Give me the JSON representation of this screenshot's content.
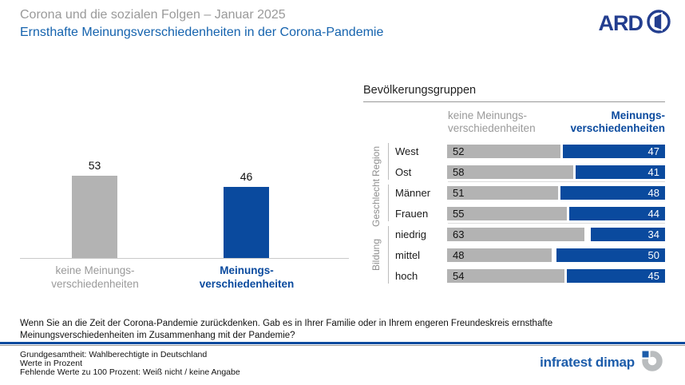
{
  "header": {
    "pretitle": "Corona und die sozialen Folgen – Januar 2025",
    "title": "Ernsthafte Meinungsverschiedenheiten in der Corona-Pandemie",
    "ard_logo_text": "ARD"
  },
  "colors": {
    "accent_blue": "#0a4a9e",
    "bar_gray": "#b3b3b3",
    "title_blue": "#1563ae",
    "text_gray": "#9a9a9a",
    "ard_navy": "#233e8f",
    "infratest_blue": "#1c5caa",
    "infratest_gray": "#b9bcbe",
    "separator_gray": "#999999",
    "baseline_gray": "#c9c9c9"
  },
  "chart_data": [
    {
      "type": "bar",
      "title": "",
      "categories": [
        "keine Meinungs-\nverschiedenheiten",
        "Meinungs-\nverschiedenheiten"
      ],
      "values": [
        53,
        46
      ],
      "bar_colors": [
        "#b3b3b3",
        "#0a4a9e"
      ],
      "ylim": [
        0,
        74
      ],
      "grid": false,
      "value_labels_shown": true
    },
    {
      "type": "bar",
      "orientation": "horizontal",
      "title": "Bevölkerungsgruppen",
      "xlim": [
        0,
        100
      ],
      "series": [
        {
          "name": "keine Meinungs-\nverschiedenheiten",
          "color": "#b3b3b3"
        },
        {
          "name": "Meinungs-\nverschiedenheiten",
          "color": "#0a4a9e"
        }
      ],
      "groups": [
        {
          "label": "Region",
          "rows": [
            {
              "label": "West",
              "keine": 52,
              "meinungs": 47
            },
            {
              "label": "Ost",
              "keine": 58,
              "meinungs": 41
            }
          ]
        },
        {
          "label": "Geschlecht",
          "rows": [
            {
              "label": "Männer",
              "keine": 51,
              "meinungs": 48
            },
            {
              "label": "Frauen",
              "keine": 55,
              "meinungs": 44
            }
          ]
        },
        {
          "label": "Bildung",
          "rows": [
            {
              "label": "niedrig",
              "keine": 63,
              "meinungs": 34
            },
            {
              "label": "mittel",
              "keine": 48,
              "meinungs": 50
            },
            {
              "label": "hoch",
              "keine": 54,
              "meinungs": 45
            }
          ]
        }
      ]
    }
  ],
  "question": "Wenn Sie an die Zeit der Corona-Pandemie zurückdenken. Gab es in Ihrer Familie oder in Ihrem engeren Freundeskreis ernsthafte Meinungsverschiedenheiten im Zusammenhang mit der Pandemie?",
  "footer": {
    "lines": [
      "Grundgesamtheit: Wahlberechtigte in Deutschland",
      "Werte in Prozent",
      "Fehlende Werte zu 100 Prozent: Weiß nicht / keine Angabe"
    ],
    "infratest_logo_text": "infratest dimap"
  }
}
